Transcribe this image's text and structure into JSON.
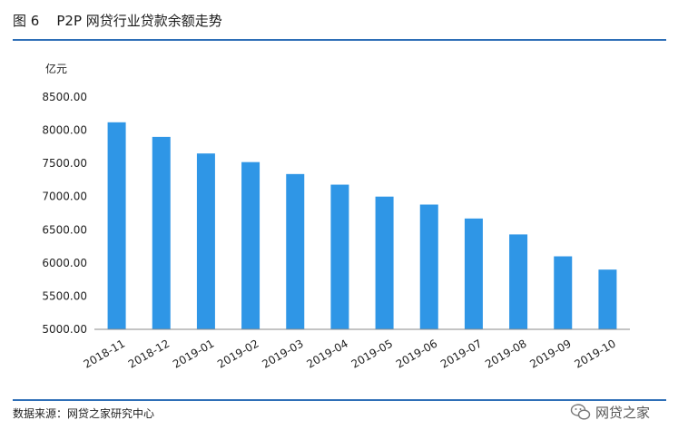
{
  "figure": {
    "title": "图 6    P2P 网贷行业贷款余额走势",
    "source": "数据来源：网贷之家研究中心",
    "watermark": "网贷之家"
  },
  "colors": {
    "bar": "#2f96e6",
    "rule": "#2e6fb7",
    "axis": "#888888"
  },
  "chart_data": {
    "type": "bar",
    "title": "P2P 网贷行业贷款余额走势",
    "ylabel": "亿元",
    "xlabel": "",
    "ylim": [
      5000,
      8500
    ],
    "ytick_step": 500,
    "ytick_labels": [
      "5000.00",
      "5500.00",
      "6000.00",
      "6500.00",
      "7000.00",
      "7500.00",
      "8000.00",
      "8500.00"
    ],
    "categories": [
      "2018-11",
      "2018-12",
      "2019-01",
      "2019-02",
      "2019-03",
      "2019-04",
      "2019-05",
      "2019-06",
      "2019-07",
      "2019-08",
      "2019-09",
      "2019-10"
    ],
    "values": [
      8120,
      7900,
      7650,
      7520,
      7340,
      7180,
      7000,
      6880,
      6670,
      6430,
      6100,
      5900
    ],
    "grid": false,
    "legend": "none"
  }
}
